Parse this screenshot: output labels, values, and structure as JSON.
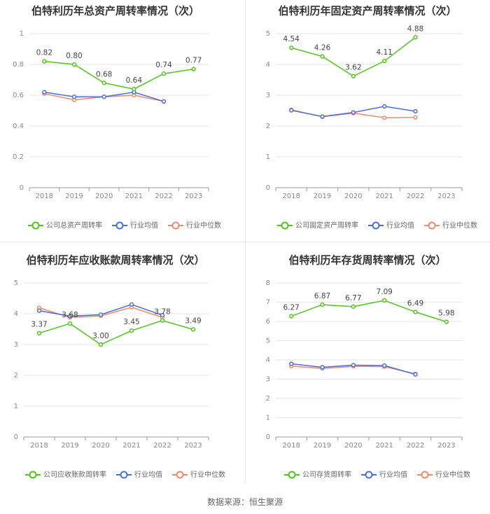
{
  "source_text": "数据来源：恒生聚源",
  "colors": {
    "company": "#52c41a",
    "avg": "#4b6fd6",
    "median": "#f08a6c",
    "grid": "#e6e6e6",
    "axis": "#999999",
    "tick": "#888888",
    "title": "#333333",
    "label": "#444444"
  },
  "chart_data": [
    {
      "type": "line",
      "title": "伯特利历年总资产周转率情况（次）",
      "categories": [
        "2018",
        "2019",
        "2020",
        "2021",
        "2022",
        "2023"
      ],
      "ylim": [
        0,
        1
      ],
      "yticks": [
        "0",
        "0.2",
        "0.4",
        "0.6",
        "0.8",
        "1"
      ],
      "series": [
        {
          "name": "公司总资产周转率",
          "color": "#52c41a",
          "values": [
            0.82,
            0.8,
            0.68,
            0.64,
            0.74,
            0.77
          ],
          "labels": [
            "0.82",
            "0.80",
            "0.68",
            "0.64",
            "0.74",
            "0.77"
          ]
        },
        {
          "name": "行业均值",
          "color": "#4b6fd6",
          "values": [
            0.62,
            0.59,
            0.59,
            0.62,
            0.56,
            null
          ]
        },
        {
          "name": "行业中位数",
          "color": "#f08a6c",
          "values": [
            0.61,
            0.57,
            0.59,
            0.6,
            0.56,
            null
          ]
        }
      ]
    },
    {
      "type": "line",
      "title": "伯特利历年固定资产周转率情况（次）",
      "categories": [
        "2018",
        "2019",
        "2020",
        "2021",
        "2022",
        "2023"
      ],
      "ylim": [
        0,
        5
      ],
      "yticks": [
        "0",
        "1",
        "2",
        "3",
        "4",
        "5"
      ],
      "series": [
        {
          "name": "公司固定资产周转率",
          "color": "#52c41a",
          "values": [
            4.54,
            4.26,
            3.62,
            4.11,
            4.88,
            null
          ],
          "labels": [
            "4.54",
            "4.26",
            "3.62",
            "4.11",
            "4.88",
            null
          ]
        },
        {
          "name": "行业均值",
          "color": "#4b6fd6",
          "values": [
            2.51,
            2.31,
            2.44,
            2.64,
            2.48,
            null
          ]
        },
        {
          "name": "行业中位数",
          "color": "#f08a6c",
          "values": [
            2.53,
            2.3,
            2.42,
            2.27,
            2.28,
            null
          ]
        }
      ]
    },
    {
      "type": "line",
      "title": "伯特利历年应收账款周转率情况（次）",
      "categories": [
        "2018",
        "2019",
        "2020",
        "2021",
        "2022",
        "2023"
      ],
      "ylim": [
        0,
        5
      ],
      "yticks": [
        "0",
        "1",
        "2",
        "3",
        "4",
        "5"
      ],
      "series": [
        {
          "name": "公司应收账款周转率",
          "color": "#52c41a",
          "values": [
            3.37,
            3.68,
            3.0,
            3.45,
            3.78,
            3.49
          ],
          "labels": [
            "3.37",
            "3.68",
            "3.00",
            "3.45",
            "3.78",
            "3.49"
          ]
        },
        {
          "name": "行业均值",
          "color": "#4b6fd6",
          "values": [
            4.1,
            3.92,
            3.97,
            4.3,
            3.95,
            null
          ]
        },
        {
          "name": "行业中位数",
          "color": "#f08a6c",
          "values": [
            4.19,
            3.88,
            3.93,
            4.21,
            3.88,
            null
          ]
        }
      ]
    },
    {
      "type": "line",
      "title": "伯特利历年存货周转率情况（次）",
      "categories": [
        "2018",
        "2019",
        "2020",
        "2021",
        "2022",
        "2023"
      ],
      "ylim": [
        0,
        8
      ],
      "yticks": [
        "0",
        "1",
        "2",
        "3",
        "4",
        "5",
        "6",
        "7",
        "8"
      ],
      "series": [
        {
          "name": "公司存货周转率",
          "color": "#52c41a",
          "values": [
            6.27,
            6.87,
            6.77,
            7.09,
            6.49,
            5.98
          ],
          "labels": [
            "6.27",
            "6.87",
            "6.77",
            "7.09",
            "6.49",
            "5.98"
          ]
        },
        {
          "name": "行业均值",
          "color": "#4b6fd6",
          "values": [
            3.8,
            3.62,
            3.73,
            3.71,
            3.25,
            null
          ]
        },
        {
          "name": "行业中位数",
          "color": "#f08a6c",
          "values": [
            3.68,
            3.56,
            3.67,
            3.65,
            3.28,
            null
          ]
        }
      ]
    }
  ]
}
